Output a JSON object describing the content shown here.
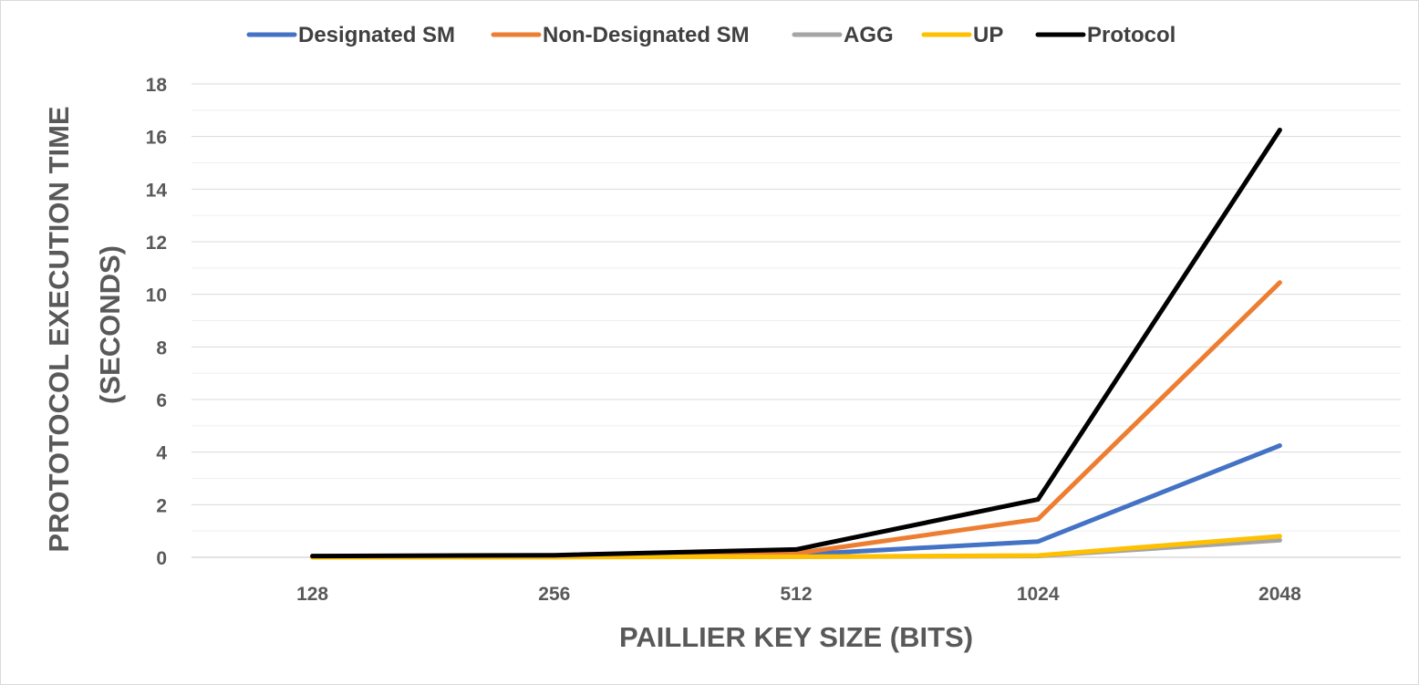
{
  "chart_data": {
    "type": "line",
    "title": "",
    "xlabel": "PAILLIER KEY SIZE (BITS)",
    "ylabel_lines": [
      "PROTOTOCOL EXECUTION TIME",
      "(SECONDS)"
    ],
    "categories": [
      "128",
      "256",
      "512",
      "1024",
      "2048"
    ],
    "ylim": [
      0,
      18
    ],
    "yticks": [
      0,
      2,
      4,
      6,
      8,
      10,
      12,
      14,
      16,
      18
    ],
    "grid": true,
    "legend_position": "top",
    "series": [
      {
        "name": "Designated SM",
        "color": "#4472C4",
        "values": [
          0.01,
          0.03,
          0.1,
          0.6,
          4.25
        ]
      },
      {
        "name": "Non-Designated SM",
        "color": "#ED7D31",
        "values": [
          0.02,
          0.04,
          0.15,
          1.45,
          10.45
        ]
      },
      {
        "name": "AGG",
        "color": "#A5A5A5",
        "values": [
          0.0,
          0.01,
          0.02,
          0.05,
          0.65
        ]
      },
      {
        "name": "UP",
        "color": "#FFC000",
        "values": [
          0.0,
          0.01,
          0.02,
          0.07,
          0.8
        ]
      },
      {
        "name": "Protocol",
        "color": "#000000",
        "values": [
          0.05,
          0.08,
          0.3,
          2.2,
          16.25
        ]
      }
    ]
  }
}
